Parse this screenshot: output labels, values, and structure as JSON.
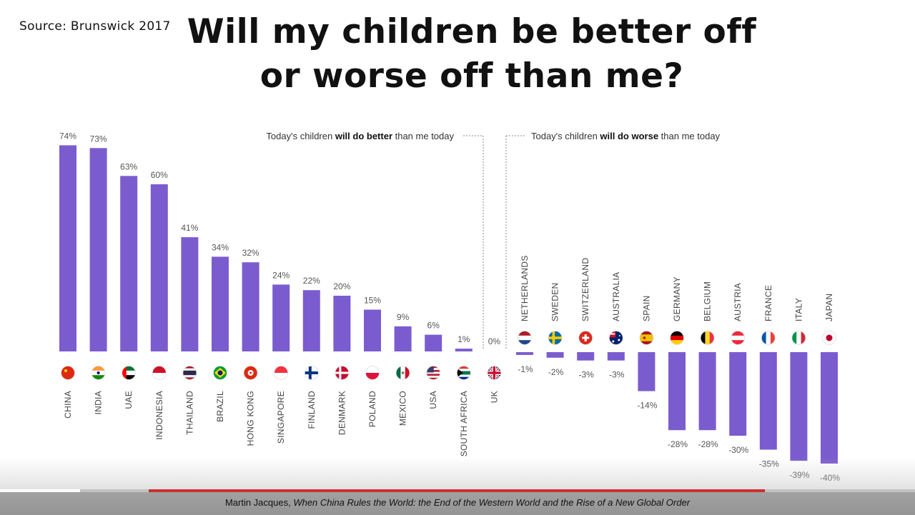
{
  "source": "Source: Brunswick 2017",
  "title_line1": "Will my children be better off",
  "title_line2": "or worse off than me?",
  "caption": {
    "author": "Martin Jacques, ",
    "book": "When China Rules the World: the End of the Western World and the Rise of a New Global Order"
  },
  "chart_data": {
    "type": "bar",
    "annotations": {
      "better": [
        "Today's children ",
        "will do better",
        " than me today"
      ],
      "worse": [
        "Today's children ",
        "will do worse",
        " than me today"
      ]
    },
    "bar_color": "#7b5ccf",
    "categories": [
      "CHINA",
      "INDIA",
      "UAE",
      "INDONESIA",
      "THAILAND",
      "BRAZIL",
      "HONG KONG",
      "SINGAPORE",
      "FINLAND",
      "DENMARK",
      "POLAND",
      "MEXICO",
      "USA",
      "SOUTH AFRICA",
      "UK",
      "NETHERLANDS",
      "SWEDEN",
      "SWITZERLAND",
      "AUSTRALIA",
      "SPAIN",
      "GERMANY",
      "BELGIUM",
      "AUSTRIA",
      "FRANCE",
      "ITALY",
      "JAPAN"
    ],
    "values": [
      74,
      73,
      63,
      60,
      41,
      34,
      32,
      24,
      22,
      20,
      15,
      9,
      6,
      1,
      0,
      -1,
      -2,
      -3,
      -3,
      -14,
      -28,
      -28,
      -30,
      -35,
      -39,
      -40
    ],
    "value_labels": [
      "74%",
      "73%",
      "63%",
      "60%",
      "41%",
      "34%",
      "32%",
      "24%",
      "22%",
      "20%",
      "15%",
      "9%",
      "6%",
      "1%",
      "0%",
      "-1%",
      "-2%",
      "-3%",
      "-3%",
      "-14%",
      "-28%",
      "-28%",
      "-30%",
      "-35%",
      "-39%",
      "-40%"
    ],
    "flag_icons": [
      "china-flag-icon",
      "india-flag-icon",
      "uae-flag-icon",
      "indonesia-flag-icon",
      "thailand-flag-icon",
      "brazil-flag-icon",
      "hong-kong-flag-icon",
      "singapore-flag-icon",
      "finland-flag-icon",
      "denmark-flag-icon",
      "poland-flag-icon",
      "mexico-flag-icon",
      "usa-flag-icon",
      "south-africa-flag-icon",
      "uk-flag-icon",
      "netherlands-flag-icon",
      "sweden-flag-icon",
      "switzerland-flag-icon",
      "australia-flag-icon",
      "spain-flag-icon",
      "germany-flag-icon",
      "belgium-flag-icon",
      "austria-flag-icon",
      "france-flag-icon",
      "italy-flag-icon",
      "japan-flag-icon"
    ],
    "ylim": [
      -40,
      74
    ]
  }
}
